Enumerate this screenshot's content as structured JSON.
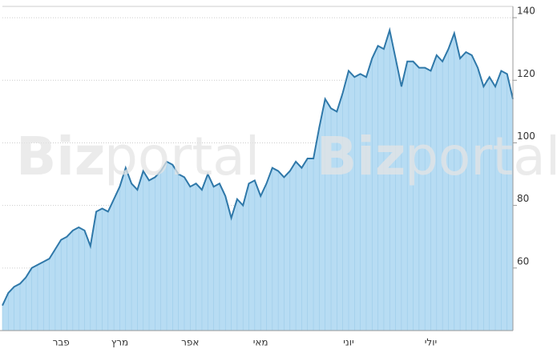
{
  "chart_data": {
    "type": "area",
    "watermark": {
      "bold": "Biz",
      "light": "portal"
    },
    "categories": [
      null,
      null,
      null,
      null,
      null,
      null,
      null,
      null,
      null,
      null,
      "פבר",
      null,
      null,
      null,
      null,
      null,
      null,
      null,
      null,
      null,
      "מרץ",
      null,
      null,
      null,
      null,
      null,
      null,
      null,
      null,
      null,
      null,
      null,
      "אפר",
      null,
      null,
      null,
      null,
      null,
      null,
      null,
      null,
      null,
      null,
      null,
      "מאי",
      null,
      null,
      null,
      null,
      null,
      null,
      null,
      null,
      null,
      null,
      null,
      null,
      null,
      null,
      "יוני",
      null,
      null,
      null,
      null,
      null,
      null,
      null,
      null,
      null,
      null,
      null,
      null,
      null,
      "יולי",
      null,
      null,
      null,
      null,
      null,
      null,
      null,
      null,
      null,
      null,
      null,
      null,
      null,
      null
    ],
    "values": [
      48,
      52,
      54,
      55,
      57,
      60,
      61,
      62,
      63,
      66,
      69,
      70,
      72,
      73,
      72,
      67,
      78,
      79,
      78,
      82,
      86,
      92,
      87,
      85,
      91,
      88,
      89,
      91,
      94,
      93,
      90,
      89,
      86,
      87,
      85,
      90,
      86,
      87,
      83,
      76,
      82,
      80,
      87,
      88,
      83,
      87,
      92,
      91,
      89,
      91,
      94,
      92,
      95,
      95,
      105,
      114,
      111,
      110,
      116,
      123,
      121,
      122,
      121,
      127,
      131,
      130,
      136,
      127,
      118,
      126,
      126,
      124,
      124,
      123,
      128,
      126,
      130,
      135,
      127,
      129,
      128,
      124,
      118,
      121,
      118,
      123,
      122,
      114
    ],
    "color": "#2f78a9",
    "fill": "#b7dcf3",
    "ylim": [
      40,
      143.6
    ],
    "yticks": [
      60,
      80,
      100,
      120,
      140
    ],
    "grid": true
  }
}
